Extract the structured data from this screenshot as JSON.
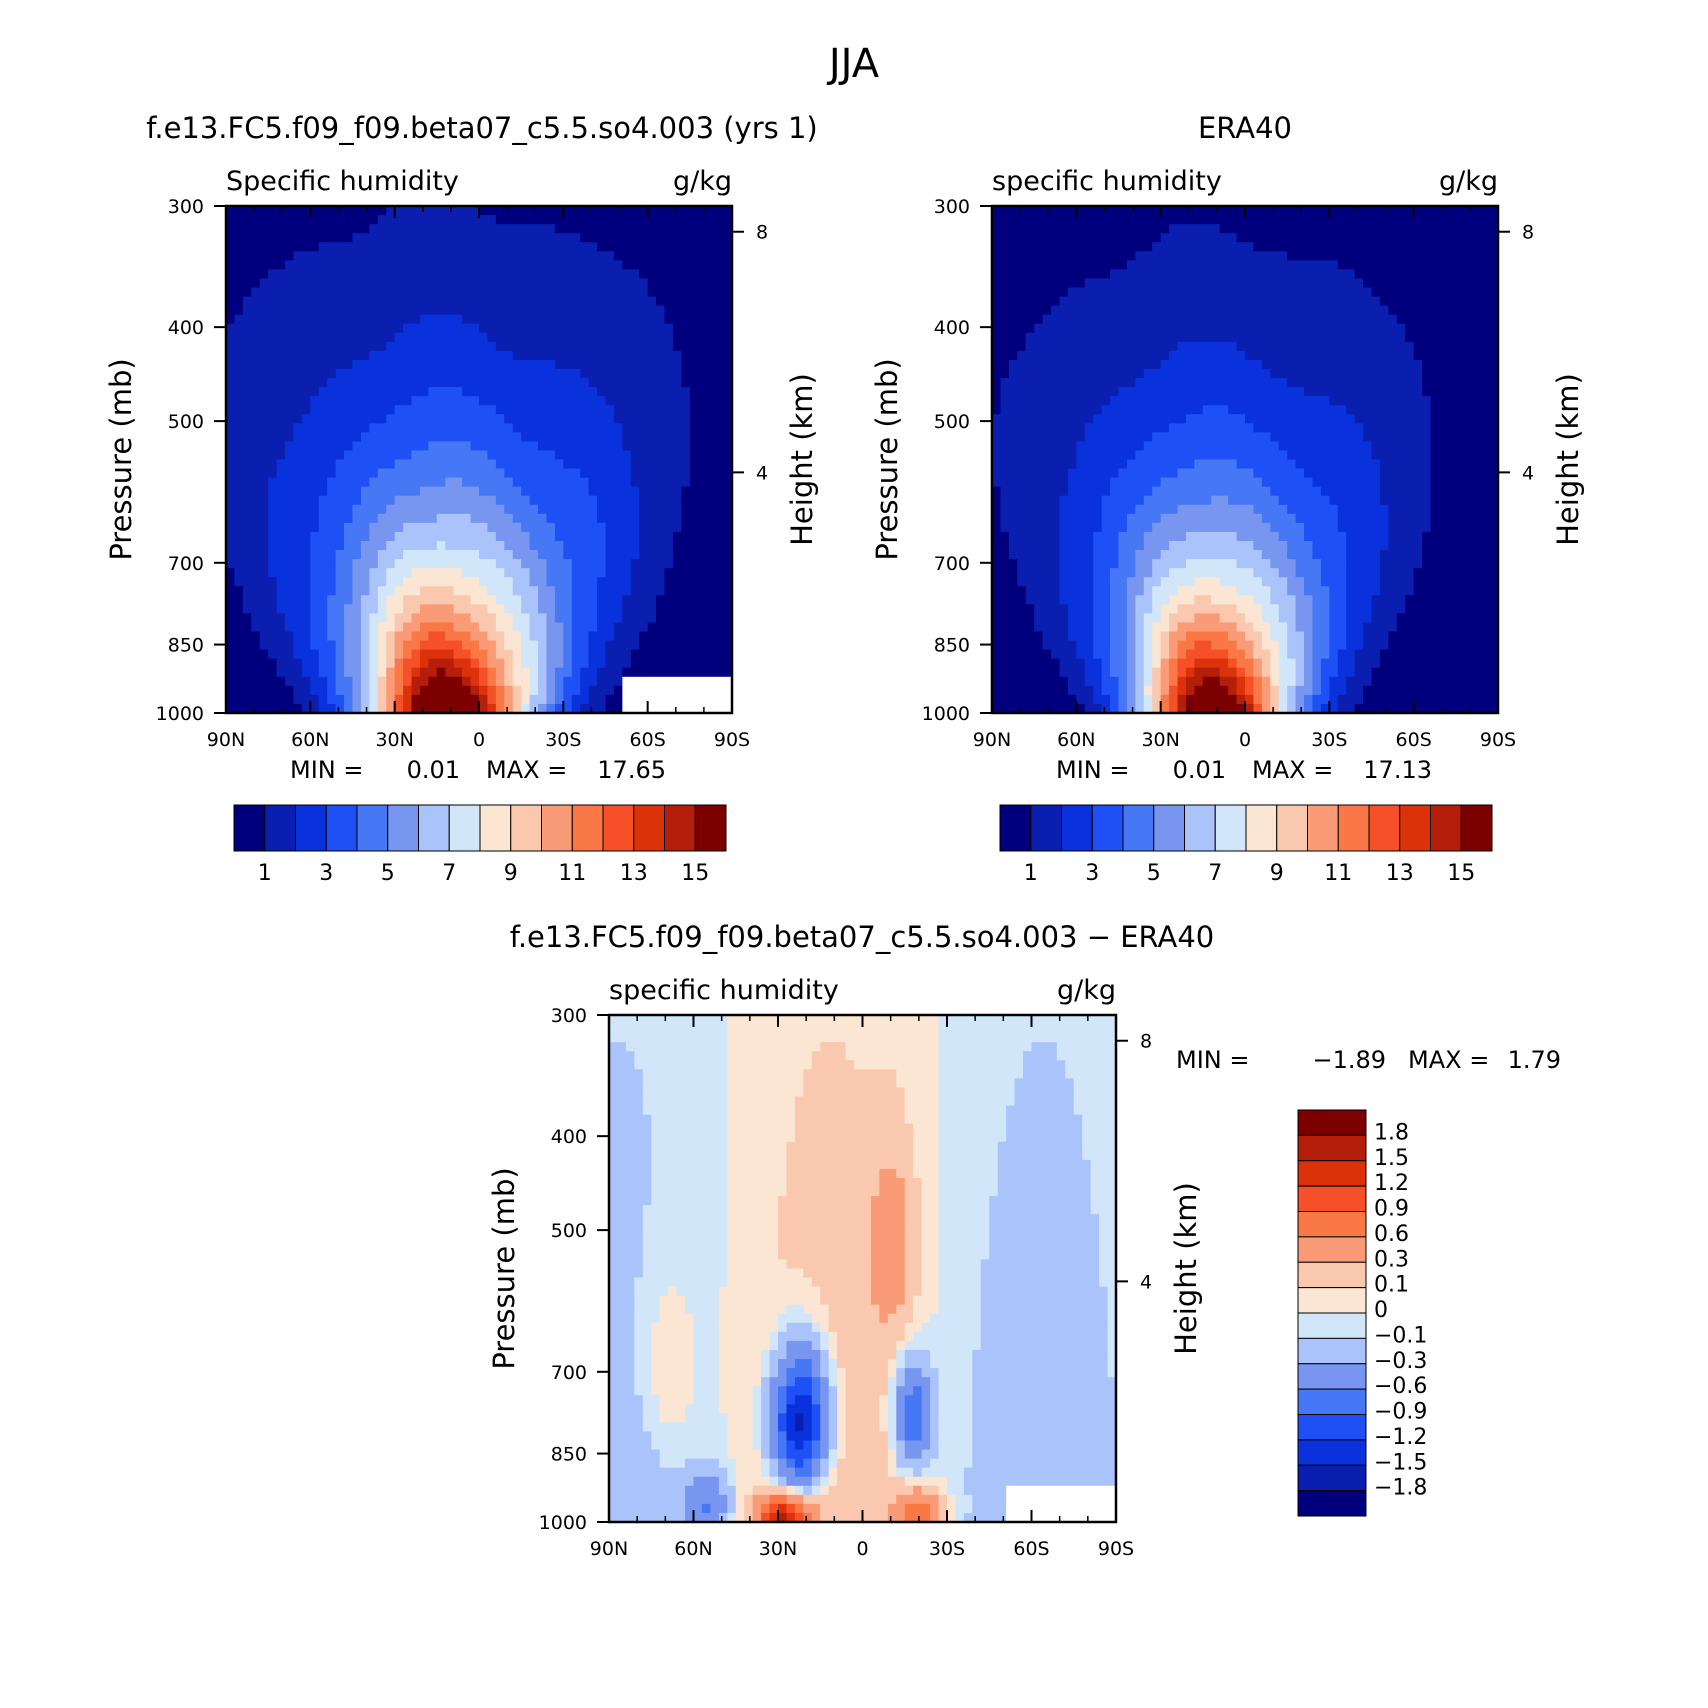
{
  "figure": {
    "title": "JJA"
  },
  "chart_data": [
    {
      "type": "heatmap",
      "panel_title": "f.e13.FC5.f09_f09.beta07_c5.5.so4.003 (yrs 1)",
      "left_label": "Specific humidity",
      "right_label": "g/kg",
      "ylabel": "Pressure (mb)",
      "ylabel2": "Height (km)",
      "x_ticks": [
        "90N",
        "60N",
        "30N",
        "0",
        "30S",
        "60S",
        "90S"
      ],
      "xlim": [
        90,
        -90
      ],
      "y_ticks": [
        300,
        400,
        500,
        700,
        850,
        1000
      ],
      "ylim": [
        1000,
        300
      ],
      "y2_ticks": [
        4,
        8
      ],
      "stats": {
        "min_label": "MIN =",
        "min": "0.01",
        "max_label": "MAX =",
        "max": "17.65"
      },
      "levels": [
        1,
        2,
        3,
        4,
        5,
        6,
        7,
        8,
        9,
        10,
        11,
        12,
        13,
        14,
        15
      ],
      "level_labels": [
        "1",
        "3",
        "5",
        "7",
        "9",
        "11",
        "13",
        "15"
      ],
      "colors": [
        "#00007f",
        "#0a1eb0",
        "#0a32dc",
        "#1e50f5",
        "#4678f5",
        "#7896f0",
        "#aac3fa",
        "#d2e6fa",
        "#fae6d2",
        "#fac8af",
        "#fa9b78",
        "#fa7846",
        "#f55028",
        "#dc320a",
        "#b41e0a",
        "#7d0000"
      ],
      "field": {
        "peak": 17.65,
        "peak_lat": 10,
        "lat_width": 22,
        "scale_height": 0.42,
        "bg": 0.01,
        "masked_region": {
          "lat_from": -50,
          "lat_to": -90,
          "p_from": 920,
          "p_to": 1000
        }
      }
    },
    {
      "type": "heatmap",
      "panel_title": "ERA40",
      "left_label": "specific humidity",
      "right_label": "g/kg",
      "ylabel": "Pressure (mb)",
      "ylabel2": "Height (km)",
      "x_ticks": [
        "90N",
        "60N",
        "30N",
        "0",
        "30S",
        "60S",
        "90S"
      ],
      "xlim": [
        90,
        -90
      ],
      "y_ticks": [
        300,
        400,
        500,
        700,
        850,
        1000
      ],
      "ylim": [
        1000,
        300
      ],
      "y2_ticks": [
        4,
        8
      ],
      "stats": {
        "min_label": "MIN =",
        "min": "0.01",
        "max_label": "MAX =",
        "max": "17.13"
      },
      "levels": [
        1,
        2,
        3,
        4,
        5,
        6,
        7,
        8,
        9,
        10,
        11,
        12,
        13,
        14,
        15
      ],
      "level_labels": [
        "1",
        "3",
        "5",
        "7",
        "9",
        "11",
        "13",
        "15"
      ],
      "colors": [
        "#00007f",
        "#0a1eb0",
        "#0a32dc",
        "#1e50f5",
        "#4678f5",
        "#7896f0",
        "#aac3fa",
        "#d2e6fa",
        "#fae6d2",
        "#fac8af",
        "#fa9b78",
        "#fa7846",
        "#f55028",
        "#dc320a",
        "#b41e0a",
        "#7d0000"
      ],
      "field": {
        "peak": 17.13,
        "peak_lat": 10,
        "lat_width": 20,
        "scale_height": 0.4,
        "bg": 0.01
      }
    },
    {
      "type": "heatmap",
      "panel_title": "f.e13.FC5.f09_f09.beta07_c5.5.so4.003 − ERA40",
      "left_label": "specific humidity",
      "right_label": "g/kg",
      "ylabel": "Pressure (mb)",
      "ylabel2": "Height (km)",
      "x_ticks": [
        "90N",
        "60N",
        "30N",
        "0",
        "30S",
        "60S",
        "90S"
      ],
      "xlim": [
        90,
        -90
      ],
      "y_ticks": [
        300,
        400,
        500,
        700,
        850,
        1000
      ],
      "ylim": [
        1000,
        300
      ],
      "y2_ticks": [
        4,
        8
      ],
      "stats": {
        "min_label": "MIN =",
        "min": "−1.89",
        "max_label": "MAX =",
        "max": "1.79"
      },
      "levels": [
        -1.8,
        -1.5,
        -1.2,
        -0.9,
        -0.6,
        -0.3,
        -0.1,
        0,
        0.1,
        0.3,
        0.6,
        0.9,
        1.2,
        1.5,
        1.8
      ],
      "level_labels": [
        "1.8",
        "1.5",
        "1.2",
        "0.9",
        "0.6",
        "0.3",
        "0.1",
        "0",
        "−0.1",
        "−0.3",
        "−0.6",
        "−0.9",
        "−1.2",
        "−1.5",
        "−1.8"
      ],
      "colors": [
        "#00007f",
        "#0a1eb0",
        "#0a32dc",
        "#1e50f5",
        "#4678f5",
        "#7896f0",
        "#aac3fa",
        "#d2e6fa",
        "#fae6d2",
        "#fac8af",
        "#fa9b78",
        "#fa7846",
        "#f55028",
        "#dc320a",
        "#b41e0a",
        "#7d0000"
      ],
      "field": {
        "masked_region": {
          "lat_from": -50,
          "lat_to": -90,
          "p_from": 920,
          "p_to": 1000
        }
      }
    }
  ]
}
